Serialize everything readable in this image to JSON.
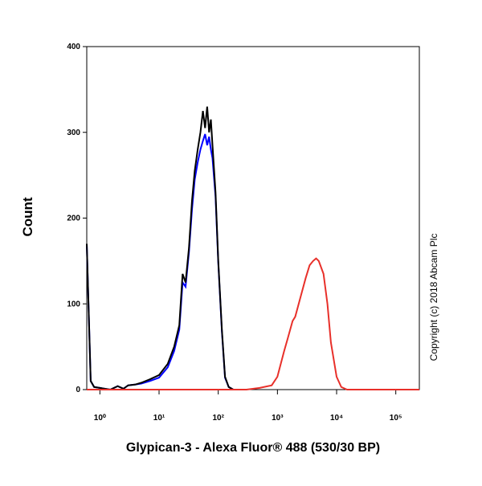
{
  "chart_data": {
    "type": "line",
    "x_label": "Glypican-3 - Alexa Fluor® 488 (530/30 BP)",
    "y_label": "Count",
    "annotation": "Copyright (c) 2018 Abcam Plc",
    "log_x": true,
    "xlim": [
      0.6,
      250000
    ],
    "xticks": [
      {
        "value": 1,
        "label": "10⁰"
      },
      {
        "value": 10,
        "label": "10¹"
      },
      {
        "value": 100,
        "label": "10²"
      },
      {
        "value": 1000,
        "label": "10³"
      },
      {
        "value": 10000,
        "label": "10⁴"
      },
      {
        "value": 100000,
        "label": "10⁵"
      }
    ],
    "ylim": [
      0,
      400
    ],
    "yticks": [
      0,
      100,
      200,
      300,
      400
    ],
    "series": [
      {
        "color": "#0000ff",
        "x": [
          0.6,
          0.7,
          0.8,
          1,
          1.5,
          2,
          2.5,
          3,
          4,
          5,
          7,
          10,
          14,
          18,
          22,
          25,
          28,
          32,
          36,
          40,
          45,
          50,
          55,
          60,
          65,
          70,
          75,
          80,
          90,
          100,
          115,
          130,
          150,
          180,
          300
        ],
        "values": [
          170,
          10,
          3,
          2,
          0,
          4,
          1,
          5,
          6,
          7,
          10,
          14,
          26,
          45,
          70,
          125,
          120,
          160,
          210,
          245,
          265,
          280,
          290,
          298,
          285,
          295,
          280,
          270,
          225,
          148,
          68,
          14,
          3,
          0,
          0
        ]
      },
      {
        "color": "#000000",
        "x": [
          0.6,
          0.7,
          0.8,
          1,
          1.5,
          2,
          2.5,
          3,
          4,
          5,
          7,
          10,
          14,
          18,
          22,
          25,
          28,
          32,
          36,
          40,
          45,
          50,
          55,
          60,
          65,
          70,
          75,
          80,
          90,
          100,
          115,
          130,
          150,
          180,
          300
        ],
        "values": [
          170,
          10,
          3,
          2,
          0,
          4,
          1,
          5,
          6,
          8,
          12,
          17,
          30,
          50,
          75,
          135,
          125,
          165,
          220,
          255,
          280,
          300,
          325,
          305,
          330,
          300,
          315,
          285,
          230,
          150,
          70,
          15,
          3,
          0,
          0
        ]
      },
      {
        "color": "#e8302a",
        "x": [
          0.6,
          100,
          300,
          500,
          800,
          1000,
          1300,
          1500,
          1800,
          2000,
          2500,
          3000,
          3500,
          4000,
          4500,
          5000,
          6000,
          7000,
          8000,
          10000,
          12000,
          15000,
          250000
        ],
        "values": [
          0,
          0,
          0,
          2,
          5,
          15,
          45,
          60,
          80,
          85,
          110,
          130,
          145,
          150,
          153,
          150,
          135,
          100,
          55,
          15,
          3,
          0,
          0
        ]
      }
    ]
  }
}
